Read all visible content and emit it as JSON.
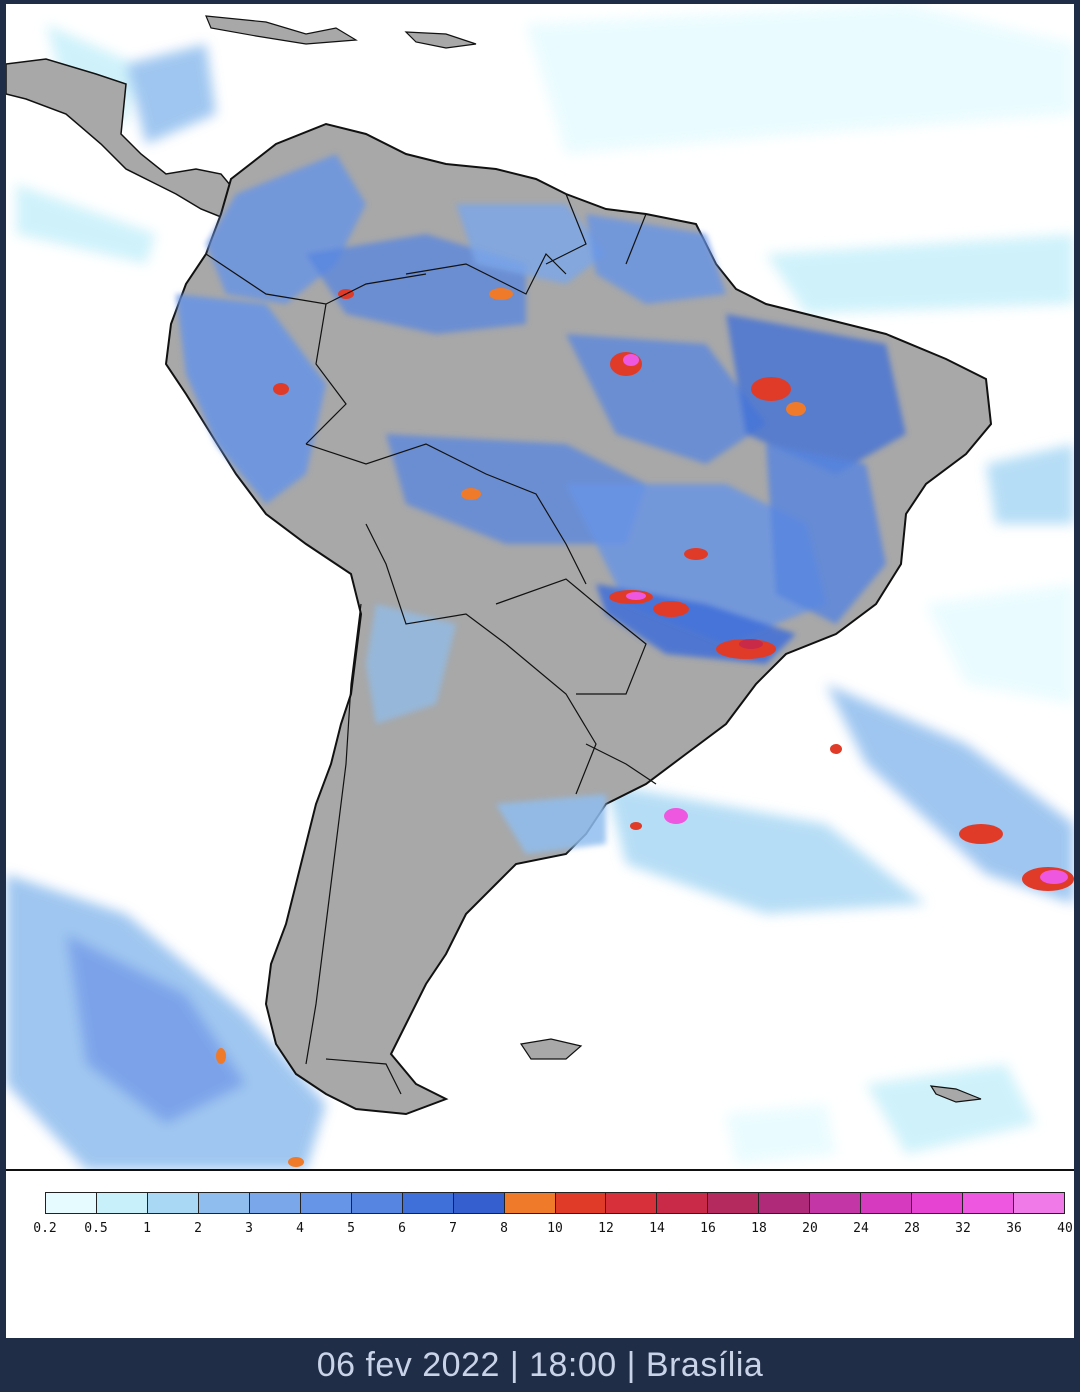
{
  "footer": {
    "caption": "06 fev 2022 | 18:00 | Brasília"
  },
  "legend": {
    "ticks": [
      "0.2",
      "0.5",
      "1",
      "2",
      "3",
      "4",
      "5",
      "6",
      "7",
      "8",
      "10",
      "12",
      "14",
      "16",
      "18",
      "20",
      "24",
      "28",
      "32",
      "36",
      "40"
    ],
    "colors": [
      "#e6fbff",
      "#c7f0fa",
      "#a9d8f4",
      "#8fbdee",
      "#7aa6ea",
      "#6694e6",
      "#5585e0",
      "#3f6fd8",
      "#355ecf",
      "#ee7a2a",
      "#e03b28",
      "#d8303a",
      "#c82a48",
      "#b52a5e",
      "#b02a7a",
      "#c236a6",
      "#d63bbf",
      "#e643d3",
      "#ee57e0",
      "#f07ae8"
    ]
  },
  "colors": {
    "land": "#a8a8a8",
    "ocean": "#ffffff",
    "frame": "#1f2d47",
    "footer_text": "#c9d3e8"
  }
}
